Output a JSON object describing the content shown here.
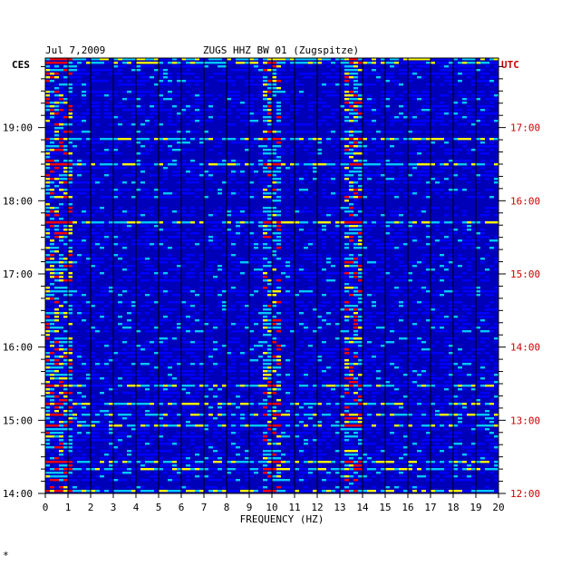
{
  "chart_data": {
    "type": "heatmap",
    "title_left": "Jul 7,2009",
    "title_center": "ZUGS HHZ BW 01 (Zugspitze)",
    "left_axis_label": "CES",
    "right_axis_label": "UTC",
    "xlabel": "FREQUENCY (HZ)",
    "xlim": [
      0,
      20
    ],
    "x_ticks": [
      "0",
      "1",
      "2",
      "3",
      "4",
      "5",
      "6",
      "7",
      "8",
      "9",
      "10",
      "11",
      "12",
      "13",
      "14",
      "15",
      "16",
      "17",
      "18",
      "19",
      "20"
    ],
    "left_ticks": [
      {
        "label": "19:00",
        "hour": 19
      },
      {
        "label": "18:00",
        "hour": 18
      },
      {
        "label": "17:00",
        "hour": 17
      },
      {
        "label": "16:00",
        "hour": 16
      },
      {
        "label": "15:00",
        "hour": 15
      },
      {
        "label": "14:00",
        "hour": 14
      }
    ],
    "right_ticks": [
      {
        "label": "17:00",
        "hour": 19
      },
      {
        "label": "16:00",
        "hour": 18
      },
      {
        "label": "15:00",
        "hour": 17
      },
      {
        "label": "14:00",
        "hour": 16
      },
      {
        "label": "13:00",
        "hour": 15
      },
      {
        "label": "12:00",
        "hour": 14
      }
    ],
    "time_range_ces": [
      14,
      19.95
    ],
    "colors": {
      "background": "#0000b8",
      "low": "#0000ff",
      "mid": "#00c8ff",
      "high": "#ffff00",
      "peak": "#ff0000",
      "right_labels": "#cc0000",
      "grid": "#000000"
    },
    "features": [
      {
        "name": "microseism band",
        "freq_hz": [
          0.1,
          1.2
        ],
        "level": 0.75
      },
      {
        "name": "9.9 Hz line",
        "freq_hz": [
          9.7,
          10.4
        ],
        "level": 0.65
      },
      {
        "name": "13.5 Hz line",
        "freq_hz": [
          13.2,
          14.0
        ],
        "level": 0.7
      }
    ],
    "footnote": "*"
  }
}
